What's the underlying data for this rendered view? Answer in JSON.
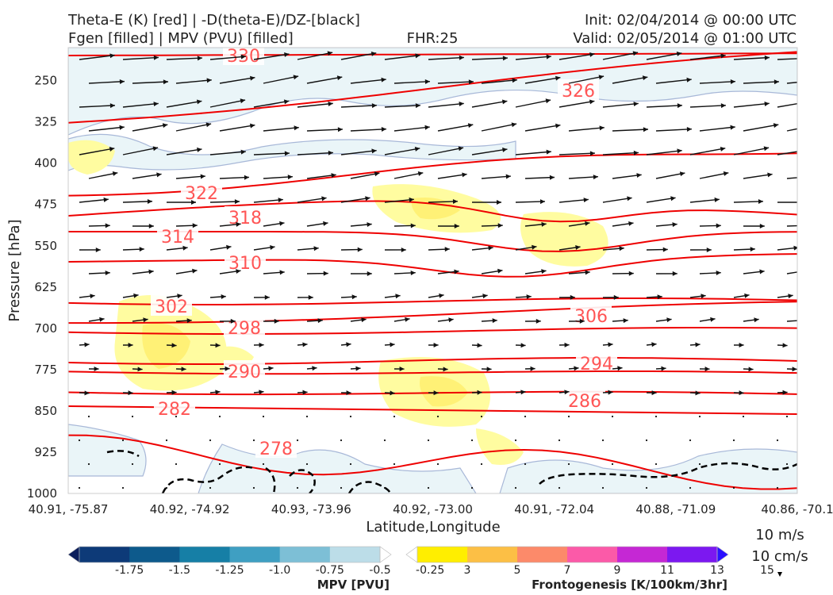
{
  "title": {
    "left_line1": "Theta-E (K) [red] | -D(theta-E)/DZ-[black]",
    "left_line2": "Fgen [filled] | MPV (PVU) [filled]",
    "center": "FHR:25",
    "right_line1": "Init: 02/04/2014 @ 00:00 UTC",
    "right_line2": "Valid: 02/05/2014 @ 01:00 UTC"
  },
  "chart_data": {
    "type": "cross-section",
    "xlabel": "Latitude,Longitude",
    "ylabel": "Pressure [hPa]",
    "x_ticks": [
      "40.91, -75.87",
      "40.92, -74.92",
      "40.93, -73.96",
      "40.92, -73.00",
      "40.91, -72.04",
      "40.88, -71.09",
      "40.86, -70.1"
    ],
    "y_ticks": [
      250,
      325,
      400,
      475,
      550,
      625,
      700,
      775,
      850,
      925,
      1000
    ],
    "ylim": [
      1000,
      190
    ],
    "y_inverted": true,
    "theta_e_contours": [
      {
        "value": 330,
        "label": "330",
        "line_color": "#ee0000"
      },
      {
        "value": 326,
        "label": "326"
      },
      {
        "value": 322,
        "label": "322"
      },
      {
        "value": 318,
        "label": "318"
      },
      {
        "value": 314,
        "label": "314"
      },
      {
        "value": 310,
        "label": "310"
      },
      {
        "value": 306,
        "label": "306"
      },
      {
        "value": 302,
        "label": "302"
      },
      {
        "value": 298,
        "label": "298"
      },
      {
        "value": 294,
        "label": "294"
      },
      {
        "value": 290,
        "label": "290"
      },
      {
        "value": 286,
        "label": "286"
      },
      {
        "value": 282,
        "label": "282"
      },
      {
        "value": 278,
        "label": "278"
      }
    ],
    "contour_color": "#ee0000",
    "label_color": "#ff5555",
    "stability_contour_color": "#000000",
    "wind_vector_color": "#111111",
    "quiver_key": {
      "horizontal": "10 m/s",
      "vertical": "10 cm/s"
    },
    "colorbars": [
      {
        "label": "MPV [PVU]",
        "ticks": [
          "-1.75",
          "-1.5",
          "-1.25",
          "-1.0",
          "-0.75",
          "-0.5",
          "-0.25"
        ],
        "colors": [
          "#0b1e5c",
          "#0d3a78",
          "#0d5a8c",
          "#167fa6",
          "#3f9fc2",
          "#7dbfd6",
          "#bcdde8",
          "#ffffff"
        ]
      },
      {
        "label": "Frontogenesis [K/100km/3hr]",
        "ticks": [
          "3",
          "5",
          "7",
          "9",
          "11",
          "13",
          "15"
        ],
        "colors": [
          "#ffffff",
          "#ffee00",
          "#fcbf45",
          "#fc8a6a",
          "#fb5aa8",
          "#c528d4",
          "#7c18f0",
          "#2a10ff"
        ]
      }
    ]
  }
}
